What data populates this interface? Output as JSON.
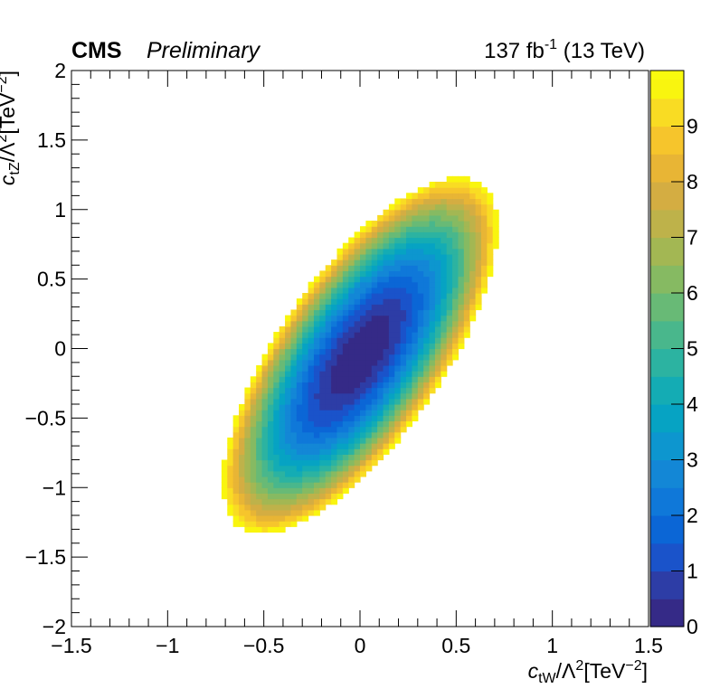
{
  "chart_data": {
    "type": "heatmap",
    "title": "",
    "experiment_label": "CMS",
    "status_label": "Preliminary",
    "luminosity_label": {
      "main": "137 fb",
      "superscript": "-1",
      "suffix": " (13 TeV)"
    },
    "xlabel": {
      "variable": "c",
      "subscript": "tW",
      "middle": "/Λ",
      "power": "2",
      "units_open": "[TeV",
      "units_power": "−2",
      "units_close": "]"
    },
    "ylabel": {
      "variable": "c",
      "subscript": "tZ",
      "middle": "/Λ",
      "power": "2",
      "units_open": "[TeV",
      "units_power": "−2",
      "units_close": "]"
    },
    "xlim": [
      -1.5,
      1.5
    ],
    "ylim": [
      -2,
      2
    ],
    "zlim": [
      0,
      10
    ],
    "x_major_ticks": [
      -1.5,
      -1,
      -0.5,
      0,
      0.5,
      1,
      1.5
    ],
    "x_tick_labels": [
      "−1.5",
      "−1",
      "−0.5",
      "0",
      "0.5",
      "1",
      "1.5"
    ],
    "y_major_ticks": [
      -2,
      -1.5,
      -1,
      -0.5,
      0,
      0.5,
      1,
      1.5,
      2
    ],
    "y_tick_labels": [
      "−2",
      "−1.5",
      "−1",
      "−0.5",
      "0",
      "0.5",
      "1",
      "1.5",
      "2"
    ],
    "colorbar_ticks": [
      0,
      1,
      2,
      3,
      4,
      5,
      6,
      7,
      8,
      9
    ],
    "colorbar_tick_labels": [
      "0",
      "1",
      "2",
      "3",
      "4",
      "5",
      "6",
      "7",
      "8",
      "9"
    ],
    "bins": {
      "nx": 100,
      "ny": 100
    },
    "surface": {
      "minimum": [
        0.0,
        -0.05
      ],
      "quadratic_form": {
        "a": 40.0,
        "b": -31.8,
        "c": 12.4
      },
      "range_shown": [
        0,
        10
      ]
    },
    "colormap": [
      "#352a87",
      "#2d3da6",
      "#1a53ca",
      "#0b66d6",
      "#0f78d9",
      "#1387d6",
      "#0d96cf",
      "#06a3c3",
      "#14acb4",
      "#2cb3a1",
      "#49b78c",
      "#68ba76",
      "#86ba62",
      "#a3b753",
      "#beb24a",
      "#d4ad42",
      "#e8b535",
      "#f6c52c",
      "#f9dc23",
      "#f9f50f"
    ],
    "colorbar_top": "#f9fb0e"
  }
}
